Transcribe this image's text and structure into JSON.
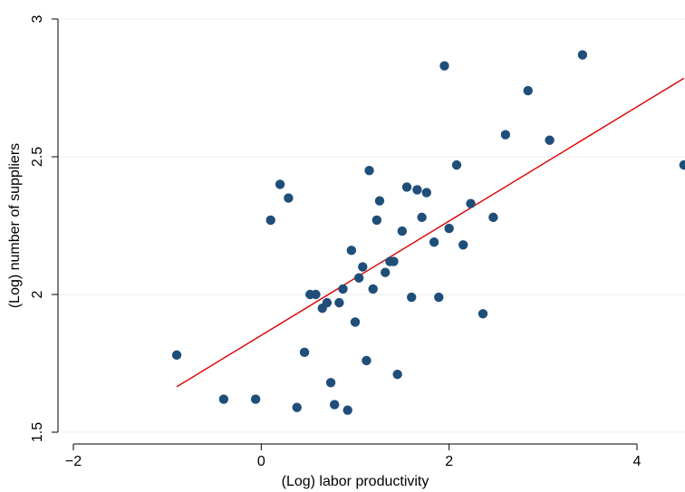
{
  "chart_data": {
    "type": "scatter",
    "xlabel": "(Log) labor productivity",
    "ylabel": "(Log) number of suppliers",
    "xlim": [
      -2.0,
      4.5
    ],
    "ylim": [
      1.5,
      3.0
    ],
    "xticks": [
      {
        "value": -2,
        "label": "−2"
      },
      {
        "value": 0,
        "label": "0"
      },
      {
        "value": 2,
        "label": "2"
      },
      {
        "value": 4,
        "label": "4"
      }
    ],
    "yticks": [
      {
        "value": 1.5,
        "label": "1.5"
      },
      {
        "value": 2,
        "label": "2"
      },
      {
        "value": 2.5,
        "label": "2.5"
      },
      {
        "value": 3,
        "label": "3"
      }
    ],
    "grid": "horizontal",
    "legend": "none",
    "series": [
      {
        "type": "scatter",
        "color": "#1f4e79",
        "points": [
          [
            -0.9,
            1.78
          ],
          [
            -0.4,
            1.62
          ],
          [
            -0.06,
            1.62
          ],
          [
            0.1,
            2.27
          ],
          [
            0.2,
            2.4
          ],
          [
            0.29,
            2.35
          ],
          [
            0.38,
            1.59
          ],
          [
            0.46,
            1.79
          ],
          [
            0.52,
            2.0
          ],
          [
            0.58,
            2.0
          ],
          [
            0.65,
            1.95
          ],
          [
            0.7,
            1.97
          ],
          [
            0.74,
            1.68
          ],
          [
            0.78,
            1.6
          ],
          [
            0.83,
            1.97
          ],
          [
            0.87,
            2.02
          ],
          [
            0.92,
            1.58
          ],
          [
            0.96,
            2.16
          ],
          [
            1.0,
            1.9
          ],
          [
            1.04,
            2.06
          ],
          [
            1.08,
            2.1
          ],
          [
            1.12,
            1.76
          ],
          [
            1.15,
            2.45
          ],
          [
            1.19,
            2.02
          ],
          [
            1.23,
            2.27
          ],
          [
            1.26,
            2.34
          ],
          [
            1.32,
            2.08
          ],
          [
            1.37,
            2.12
          ],
          [
            1.41,
            2.12
          ],
          [
            1.45,
            1.71
          ],
          [
            1.5,
            2.23
          ],
          [
            1.55,
            2.39
          ],
          [
            1.6,
            1.99
          ],
          [
            1.66,
            2.38
          ],
          [
            1.71,
            2.28
          ],
          [
            1.76,
            2.37
          ],
          [
            1.84,
            2.19
          ],
          [
            1.89,
            1.99
          ],
          [
            1.95,
            2.83
          ],
          [
            2.0,
            2.24
          ],
          [
            2.08,
            2.47
          ],
          [
            2.15,
            2.18
          ],
          [
            2.23,
            2.33
          ],
          [
            2.36,
            1.93
          ],
          [
            2.47,
            2.28
          ],
          [
            2.6,
            2.58
          ],
          [
            2.84,
            2.74
          ],
          [
            3.07,
            2.56
          ],
          [
            3.42,
            2.87
          ],
          [
            4.5,
            2.47
          ]
        ]
      },
      {
        "type": "line",
        "color": "#e00000",
        "points": [
          [
            -0.9,
            1.665
          ],
          [
            4.5,
            2.785
          ]
        ]
      }
    ]
  }
}
